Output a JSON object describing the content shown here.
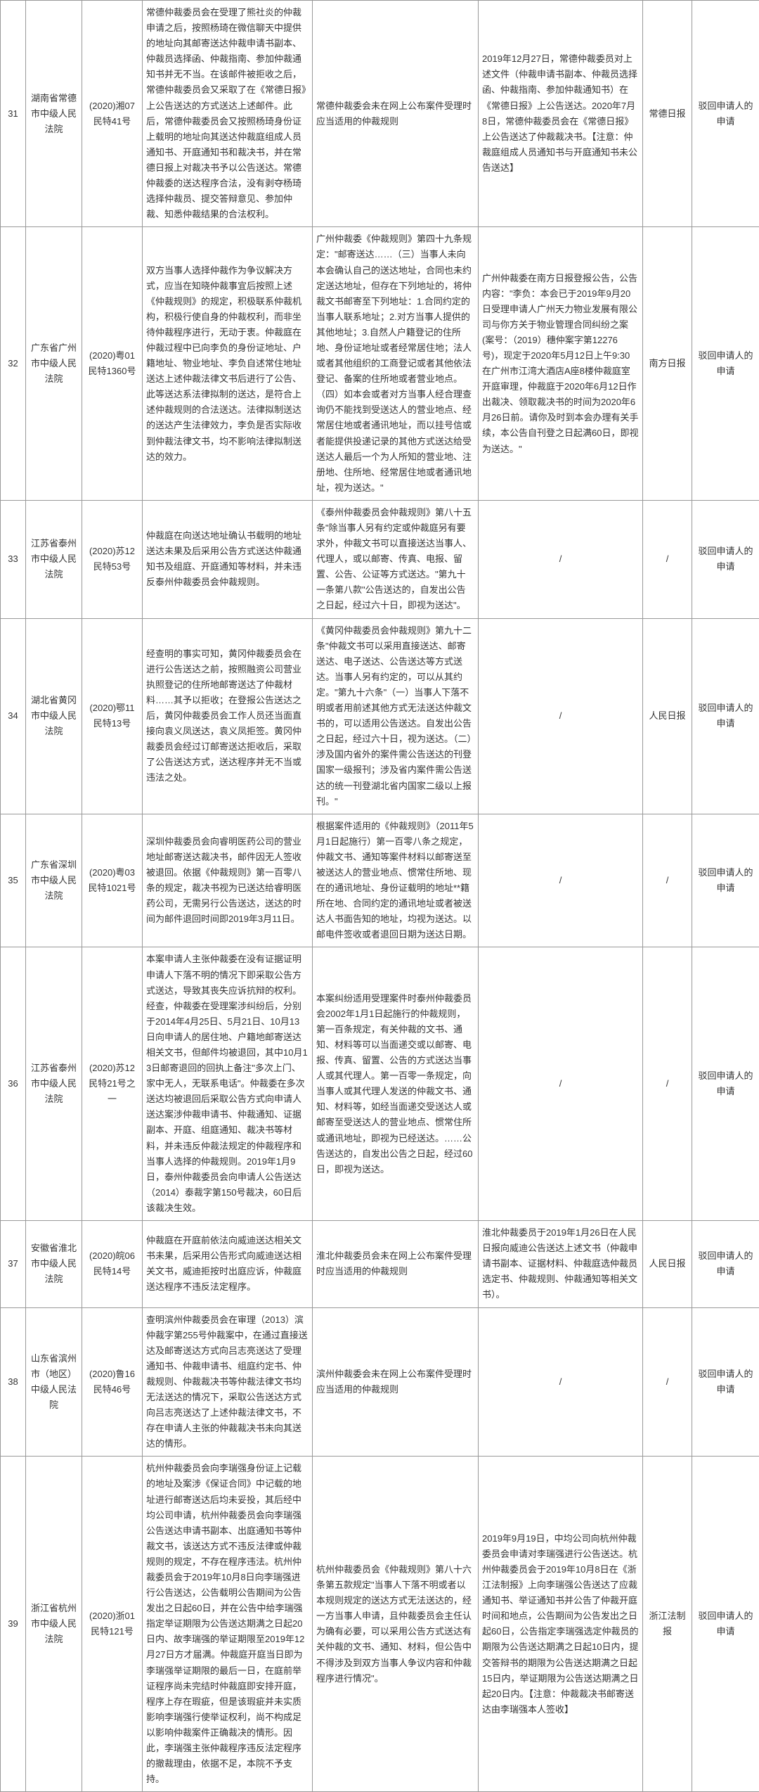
{
  "rows": [
    {
      "idx": "31",
      "court": "湖南省常德市中级人民法院",
      "caseno": "(2020)湘07民特41号",
      "facts": "常德仲裁委员会在受理了熊社炎的仲裁申请之后，按照杨琦在微信聊天中提供的地址向其邮寄送达仲裁申请书副本、仲裁员选择函、仲裁指南、参加仲裁通知书并无不当。在该邮件被拒收之后，常德仲裁委员会又采取了在《常德日报》上公告送达的方式送达上述邮件。此后，常德仲裁委员会又按照杨琦身份证上载明的地址向其送达仲裁庭组成人员通知书、开庭通知书和裁决书，并在常德日报上对裁决书予以公告送达。常德仲裁委的送达程序合法，没有剥夺杨琦选择仲裁员、提交答辩意见、参加仲裁、知悉仲裁结果的合法权利。",
      "rules": "常德仲裁委会未在网上公布案件受理时应当适用的仲裁规则",
      "notice": "2019年12月27日，常德仲裁委员对上述文件（仲裁申请书副本、仲裁员选择函、仲裁指南、参加仲裁通知书）在《常德日报》上公告送达。2020年7月8日，常德仲裁委员会在《常德日报》上公告送达了仲裁裁决书。【注意：仲裁庭组成人员通知书与开庭通知书未公告送达】",
      "media": "常德日报",
      "result": "驳回申请人的申请"
    },
    {
      "idx": "32",
      "court": "广东省广州市中级人民法院",
      "caseno": "(2020)粤01民特1360号",
      "facts": "双方当事人选择仲裁作为争议解决方式，应当在知晓仲裁事宜后按照上述《仲裁规则》的规定，积极联系仲裁机构，积极行使自身的仲裁权利，而非坐待仲裁程序进行，无动于衷。仲裁庭在仲裁过程中已向李负的身份证地址、户籍地址、物业地址、李负自述常住地址送达上述仲裁法律文书后进行了公告、此等送达系法律拟制的送达，是符合上述仲裁规则的合法送达。法律拟制送达的送达产生法律效力，李负是否实际收到仲裁法律文书，均不影响法律拟制送达的效力。",
      "rules": "广州仲裁委《仲裁规则》第四十九条规定：\"邮寄送达……（三）当事人未向本会确认自己的送达地址，合同也未约定送达地址，但存在下列地址的，将仲裁文书邮寄至下列地址：1.合同约定的当事人联系地址；2.对方当事人提供的其他地址；3.自然人户籍登记的住所地、身份证地址或者经常居住地；法人或者其他组织的工商登记或者其他依法登记、备案的住所地或者营业地点。（四）如本会或者对方当事人经合理查询仍不能找到受送达人的营业地点、经常居住地或者通讯地址，而以挂号信或者能提供投递记录的其他方式送达给受送达人最后一个为人所知的营业地、注册地、住所地、经常居住地或者通讯地址，视为送达。\"",
      "notice": "广州仲裁委在南方日报登报公告，公告内容：\"李负：本会已于2019年9月20日受理申请人广州天力物业发展有限公司与你方关于物业管理合同纠纷之案(案号：（2019）穗仲案字第12276号)，现定于2020年5月12日上午9:30在广州市江湾大酒店A座8楼仲裁庭室开庭审理，仲裁庭于2020年6月12日作出裁决、领取裁决书的时间为2020年6月26日前。请你及时到本会办理有关手续，本公告自刊登之日起满60日，即视为送达。\"",
      "media": "南方日报",
      "result": "驳回申请人的申请"
    },
    {
      "idx": "33",
      "court": "江苏省泰州市中级人民法院",
      "caseno": "(2020)苏12民特53号",
      "facts": "仲裁庭在向送达地址确认书载明的地址送达未果及后采用公告方式送达仲裁通知书及组庭、开庭通知等材料，并未违反泰州仲裁委员会仲裁规则。",
      "rules": "《泰州仲裁委员会仲裁规则》第八十五条\"除当事人另有约定或仲裁庭另有要求外，仲裁文书可以直接送达当事人、代理人，或以邮寄、传真、电报、留置、公告、公证等方式送达。\"第九十一条第八款\"公告送达的，自发出公告之日起，经过六十日，即视为送达\"。",
      "notice": "/",
      "media": "/",
      "result": "驳回申请人的申请"
    },
    {
      "idx": "34",
      "court": "湖北省黄冈市中级人民法院",
      "caseno": "(2020)鄂11民特13号",
      "facts": "经查明的事实可知，黄冈仲裁委员会在进行公告送达之前，按照融资公司营业执照登记的住所地邮寄送达了仲裁材料……其予以拒收；在登报公告送达之后，黄冈仲裁委员会工作人员还当面直接向袁义凤送达，袁义凤拒签。黄冈仲裁委员会经过订邮寄送达拒收后，采取了公告送达方式，送达程序并无不当或违法之处。",
      "rules": "《黄冈仲裁委员会仲裁规则》第九十二条\"仲裁文书可以采用直接送达、邮寄送达、电子送达、公告送达等方式送达。当事人另有约定的，可以从其约定。\"第九十六条\"（一）当事人下落不明或者用前述其他方式无法送达仲裁文书的，可以适用公告送达。自发出公告之日起，经过六十日，视为送达。（二）涉及国内省外的案件需公告送达的刊登国家一级报刊；涉及省内案件需公告送达的统一刊登湖北省内国家二级以上报刊。\"",
      "notice": "/",
      "media": "人民日报",
      "result": "驳回申请人的申请"
    },
    {
      "idx": "35",
      "court": "广东省深圳市中级人民法院",
      "caseno": "(2020)粤03民特1021号",
      "facts": "深圳仲裁委员会向睿明医药公司的营业地址邮寄送达裁决书，邮件因无人签收被退回。依据《仲裁规则》第一百零八条的规定，裁决书视为已送达给睿明医药公司，无需另行公告送达，送达的时间为邮件退回时间即2019年3月11日。",
      "rules": "根据案件适用的《仲裁规则》（2011年5月1日起施行）第一百零八条之规定，仲裁文书、通知等案件材料以邮寄送至被送达人的营业地点、惯常住所地、现在的通讯地址、身份证载明的地址**籍所在地、合同约定的通讯地址或者被送达人书面告知的地址，均视为送达。以邮电件签收或者退回日期为送达日期。",
      "notice": "/",
      "media": "/",
      "result": "驳回申请人的申请"
    },
    {
      "idx": "36",
      "court": "江苏省泰州市中级人民法院",
      "caseno": "(2020)苏12民特21号之一",
      "facts": "本案申请人主张仲裁委在没有证据证明申请人下落不明的情况下即采取公告方式送达，导致其丧失应诉抗辩的权利。经查，仲裁委在受理案涉纠纷后，分别于2014年4月25日、5月21日、10月13日向申请人的居住地、户籍地邮寄送达相关文书，但邮件均被退回，其中10月13日邮寄退回的回执上备注\"多次上门、家中无人，无联系电话\"。仲裁委在多次送达均被退回后采取公告方式向申请人送达案涉仲裁申请书、仲裁通知、证据副本、开庭、组庭通知、裁决书等材料，并未违反仲裁法规定的仲裁程序和当事人选择的仲裁规则。2019年1月9日，泰州仲裁委员会向申请人公告送达（2014）泰裁字第150号裁决，60日后该裁决生效。",
      "rules": "本案纠纷适用受理案件时泰州仲裁委员会2002年1月1日起施行的仲裁规则，第一百条规定，有关仲裁的文书、通知、材料等可以当面递交或以邮寄、电报、传真、留置、公告的方式送达当事人或其代理人。第一百零一条规定，向当事人或其代理人发送的仲裁文书、通知、材料等，如经当面递交受送达人或邮寄至受送达人的营业地点、惯常住所或通讯地址，即视为已经送达。……公告送达的，自发出公告之日起，经过60日，即视为送达。",
      "notice": "/",
      "media": "/",
      "result": "驳回申请人的申请"
    },
    {
      "idx": "37",
      "court": "安徽省淮北市中级人民法院",
      "caseno": "(2020)皖06民特14号",
      "facts": "仲裁庭在开庭前依法向威迪送达相关文书未果，后采用公告形式向威迪送达相关文书，威迪拒按时出庭应诉，仲裁庭送达程序不违反法定程序。",
      "rules": "淮北仲裁委员会未在网上公布案件受理时应当适用的仲裁规则",
      "notice": "淮北仲裁委员于2019年1月26日在人民日报向威迪公告送达上述文书（仲裁申请书副本、证据材料、仲裁庭选仲裁员选定书、仲裁规则、仲裁通知等相关文书）。",
      "media": "人民日报",
      "result": "驳回申请人的申请"
    },
    {
      "idx": "38",
      "court": "山东省滨州市（地区）中级人民法院",
      "caseno": "(2020)鲁16民特46号",
      "facts": "查明滨州仲裁委员会在审理（2013）滨仲裁字第255号仲裁案中，在通过直接送达及邮寄送达方式向吕志亮送达了受理通知书、仲裁申请书、组庭约定书、仲裁规则、仲裁裁决书等仲裁法律文书均无法送达的情况下，采取公告送达方式向吕志亮送达了上述仲裁法律文书，不存在申请人主张的仲裁裁决书未向其送达的情形。",
      "rules": "滨州仲裁委会未在网上公布案件受理时应当适用的仲裁规则",
      "notice": "/",
      "media": "/",
      "result": "驳回申请人的申请"
    },
    {
      "idx": "39",
      "court": "浙江省杭州市中级人民法院",
      "caseno": "(2020)浙01民特121号",
      "facts": "杭州仲裁委员会向李瑞强身份证上记载的地址及案涉《保证合同》中记载的地址进行邮寄送达后均未妥投，其后经中均公司申请，杭州仲裁委员会向李瑞强公告送达申请书副本、出庭通知书等仲裁文书，该送达方式不违反法律或仲裁规则的规定，不存在程序违法。杭州仲裁委员会于2019年10月8日向李瑞强进行公告送达，公告载明公告期间为公告发出之日起60日，并在公告中给李瑞强指定举证期限为公告送达期满之日起20日内、故李瑞强的举证期限至2019年12月27日方才届满。仲裁庭开庭当日即为李瑞强举证期限的最后一日，在庭前举证程序尚未完结时仲裁庭即安排开庭，程序上存在瑕疵，但是该瑕疵并未实质影响李瑞强行使举证权利，尚不构成足以影响仲裁案件正确裁决的情形。因此，李瑞强主张仲裁程序违反法定程序的撤裁理由，依据不足，本院不予支持。",
      "rules": "杭州仲裁委员会《仲裁规则》第八十六条第五款规定\"当事人下落不明或者以本规则规定的送达方式无法送达的，经一方当事人申请，且仲裁委员会主任认为确有必要，可以采用公告方式送达有关仲裁的文书、通知、材料，但公告中不得涉及到双方当事人争议内容和仲裁程序进行情况\"。",
      "notice": "2019年9月19日，中均公司向杭州仲裁委员会申请对李瑞强进行公告送达。杭州仲裁委员会于2019年10月8日在《浙江法制报》上向李瑞强公告送达了应裁通知书、举证通知书并公告了仲裁开庭时间和地点，公告期间为公告发出之日起60日，公告指定李瑞强选定仲裁员的期限为公告送达期满之日起10日内，提交答辩书的期限为公告送达期满之日起15日内，举证期限为公告送达期满之日起20日内。【注意：仲裁裁决书邮寄送达由李瑞强本人签收】",
      "media": "浙江法制报",
      "result": "驳回申请人的申请"
    }
  ]
}
